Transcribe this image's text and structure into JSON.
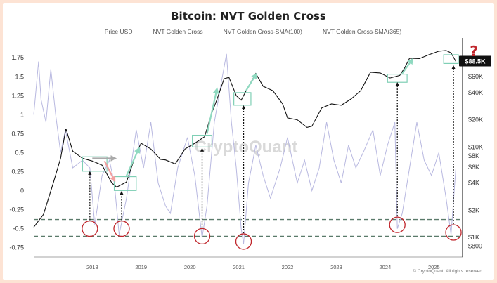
{
  "chart_data": {
    "type": "line",
    "title": "Bitcoin: NVT Golden Cross",
    "legend": [
      {
        "name": "Price USD",
        "struck": false,
        "color": "#999999"
      },
      {
        "name": "NVT Golden Cross",
        "struck": true,
        "color": "#666666"
      },
      {
        "name": "NVT Golden Cross-SMA(100)",
        "struck": false,
        "color": "#bbbbbb"
      },
      {
        "name": "NVT Golden Cross-SMA(365)",
        "struck": true,
        "color": "#cccccc"
      }
    ],
    "x_ticks": [
      "2018",
      "2019",
      "2020",
      "2021",
      "2022",
      "2023",
      "2024",
      "2025"
    ],
    "x_range": [
      2017.3,
      2026.0
    ],
    "y_left_ticks": [
      1.75,
      1.5,
      1.25,
      1,
      0.75,
      0.5,
      0.25,
      0,
      -0.25,
      -0.5,
      -0.75
    ],
    "y_left_range": [
      -0.8,
      1.9
    ],
    "y_right_ticks": [
      "$60K",
      "$40K",
      "$20K",
      "$10K",
      "$8K",
      "$6K",
      "$4K",
      "$2K",
      "$1K",
      "$800"
    ],
    "y_right_values": [
      60000,
      40000,
      20000,
      10000,
      8000,
      6000,
      4000,
      2000,
      1000,
      800
    ],
    "y_right_range": [
      700,
      130000
    ],
    "y_right_scale": "log",
    "current_price_label": "$88.5K",
    "question_mark": "?",
    "watermark": "CryptoQuant",
    "copyright": "© CryptoQuant. All rights reserved",
    "threshold_lines": [
      -0.38,
      -0.6
    ],
    "price_series": {
      "name": "Price USD",
      "x": [
        2017.3,
        2017.5,
        2017.7,
        2017.85,
        2017.96,
        2018.1,
        2018.3,
        2018.5,
        2018.7,
        2018.9,
        2019.0,
        2019.2,
        2019.4,
        2019.5,
        2019.7,
        2019.9,
        2020.0,
        2020.2,
        2020.4,
        2020.6,
        2020.8,
        2020.95,
        2021.05,
        2021.2,
        2021.3,
        2021.45,
        2021.55,
        2021.7,
        2021.85,
        2022.0,
        2022.2,
        2022.4,
        2022.5,
        2022.7,
        2022.9,
        2023.0,
        2023.2,
        2023.4,
        2023.6,
        2023.8,
        2024.0,
        2024.2,
        2024.4,
        2024.6,
        2024.8,
        2024.9,
        2025.0,
        2025.2,
        2025.4,
        2025.6,
        2025.75,
        2025.85,
        2025.95
      ],
      "y": [
        1300,
        1800,
        4000,
        7500,
        16000,
        9000,
        7500,
        7000,
        6300,
        4000,
        3600,
        4100,
        8500,
        11000,
        9500,
        7300,
        7200,
        6500,
        9500,
        11000,
        13000,
        24000,
        33000,
        57000,
        59000,
        37000,
        33000,
        47000,
        65000,
        47000,
        42000,
        30000,
        21000,
        20000,
        16500,
        17000,
        27000,
        30000,
        29000,
        34000,
        42000,
        67000,
        66000,
        58000,
        62000,
        75000,
        96000,
        95000,
        105000,
        115000,
        117000,
        110000,
        88500
      ]
    },
    "nvt_series": {
      "name": "NVT Golden Cross-SMA(100)",
      "x": [
        2017.3,
        2017.4,
        2017.45,
        2017.55,
        2017.65,
        2017.75,
        2017.85,
        2017.95,
        2018.1,
        2018.3,
        2018.45,
        2018.55,
        2018.7,
        2018.85,
        2018.95,
        2019.05,
        2019.2,
        2019.4,
        2019.55,
        2019.7,
        2019.85,
        2020.0,
        2020.1,
        2020.25,
        2020.45,
        2020.6,
        2020.7,
        2020.75,
        2020.85,
        2021.0,
        2021.15,
        2021.25,
        2021.35,
        2021.45,
        2021.55,
        2021.6,
        2021.7,
        2021.85,
        2022.0,
        2022.15,
        2022.35,
        2022.5,
        2022.7,
        2022.85,
        2023.0,
        2023.15,
        2023.3,
        2023.45,
        2023.6,
        2023.75,
        2023.9,
        2024.05,
        2024.25,
        2024.4,
        2024.55,
        2024.7,
        2024.75,
        2024.85,
        2025.0,
        2025.15,
        2025.3,
        2025.45,
        2025.6,
        2025.75,
        2025.85,
        2025.95
      ],
      "y": [
        1.0,
        1.7,
        1.2,
        0.9,
        1.6,
        1.0,
        0.5,
        0.8,
        0.3,
        0.4,
        0.3,
        -0.45,
        0.2,
        0.4,
        0.1,
        -0.58,
        -0.1,
        0.8,
        0.3,
        0.9,
        0.1,
        -0.2,
        -0.3,
        0.3,
        0.7,
        0.2,
        -0.35,
        -0.62,
        -0.2,
        0.9,
        1.45,
        1.8,
        0.9,
        0.3,
        -0.5,
        -0.7,
        0.1,
        0.6,
        0.2,
        -0.1,
        0.3,
        0.7,
        0.1,
        0.4,
        0.0,
        0.3,
        0.9,
        0.4,
        0.1,
        0.6,
        0.3,
        0.5,
        0.8,
        0.2,
        0.6,
        0.9,
        -0.5,
        -0.3,
        0.3,
        0.9,
        0.4,
        0.2,
        0.5,
        -0.1,
        -0.58,
        0.3
      ]
    },
    "circles": [
      {
        "x": 2018.45,
        "y": -0.5
      },
      {
        "x": 2019.1,
        "y": -0.5
      },
      {
        "x": 2020.75,
        "y": -0.6
      },
      {
        "x": 2021.6,
        "y": -0.67
      },
      {
        "x": 2024.75,
        "y": -0.45
      },
      {
        "x": 2025.9,
        "y": -0.55
      }
    ],
    "signal_arrows": [
      {
        "x": 2018.45,
        "price": 5800
      },
      {
        "x": 2019.1,
        "price": 3500
      },
      {
        "x": 2020.75,
        "price": 10500
      },
      {
        "x": 2021.6,
        "price": 31000
      },
      {
        "x": 2024.75,
        "price": 56000
      },
      {
        "x": 2025.9,
        "price": 86000
      }
    ],
    "boxes": [
      {
        "x0": 2018.3,
        "x1": 2018.8,
        "p0": 5400,
        "p1": 7800
      },
      {
        "x0": 2018.95,
        "x1": 2019.4,
        "p0": 3300,
        "p1": 4700
      },
      {
        "x0": 2020.55,
        "x1": 2020.95,
        "p0": 10000,
        "p1": 13500
      },
      {
        "x0": 2021.4,
        "x1": 2021.75,
        "p0": 29000,
        "p1": 40000
      },
      {
        "x0": 2024.55,
        "x1": 2024.95,
        "p0": 52000,
        "p1": 64000
      },
      {
        "x0": 2025.7,
        "x1": 2026.0,
        "p0": 84000,
        "p1": 105000
      }
    ],
    "trend_arrows": [
      {
        "x0": 2018.5,
        "p0": 7500,
        "x1": 2018.95,
        "p1": 7500,
        "color": "#aaaaaa"
      },
      {
        "x0": 2018.75,
        "p0": 7000,
        "x1": 2018.95,
        "p1": 4300,
        "color": "#f2a0a0"
      },
      {
        "x0": 2019.2,
        "p0": 4800,
        "x1": 2019.45,
        "p1": 9500,
        "color": "#8fd9c0"
      },
      {
        "x0": 2020.85,
        "p0": 14000,
        "x1": 2021.05,
        "p1": 43000,
        "color": "#8fd9c0"
      },
      {
        "x0": 2021.65,
        "p0": 42000,
        "x1": 2021.85,
        "p1": 63000,
        "color": "#8fd9c0"
      },
      {
        "x0": 2024.85,
        "p0": 65000,
        "x1": 2025.05,
        "p1": 92000,
        "color": "#8fd9c0"
      }
    ],
    "grid": false,
    "legend_placement": "top-center"
  }
}
